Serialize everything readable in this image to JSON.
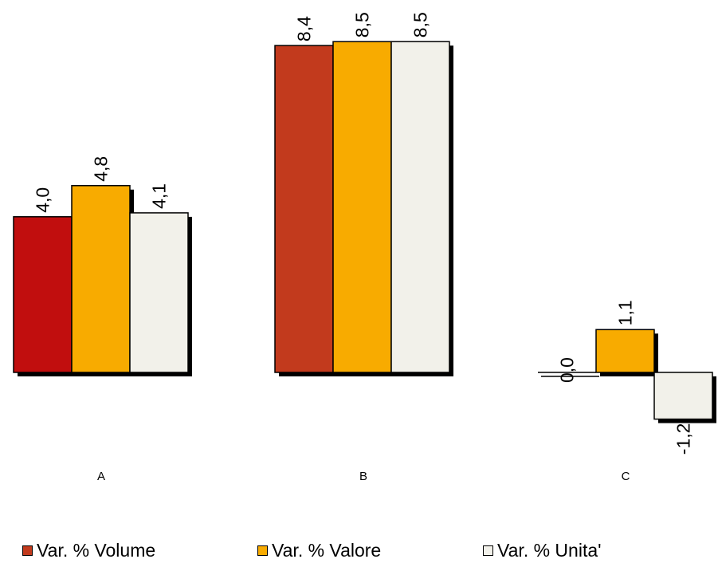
{
  "chart_data": {
    "type": "bar",
    "categories": [
      "A",
      "B",
      "C"
    ],
    "series": [
      {
        "name": "Var. % Volume",
        "values": [
          4.0,
          8.4,
          0.0
        ],
        "labels": [
          "4,0",
          "8,4",
          "0,0"
        ],
        "colors": [
          "#c10e0e",
          "#c23a1d",
          "#c23a1d"
        ]
      },
      {
        "name": "Var. % Valore",
        "values": [
          4.8,
          8.5,
          1.1
        ],
        "labels": [
          "4,8",
          "8,5",
          "1,1"
        ],
        "colors": [
          "#f8ab00",
          "#f8ab00",
          "#f8ab00"
        ]
      },
      {
        "name": "Var. % Unita'",
        "values": [
          4.1,
          8.5,
          -1.2
        ],
        "labels": [
          "4,1",
          "8,5",
          "-1,2"
        ],
        "colors": [
          "#f2f1ea",
          "#f2f1ea",
          "#f2f1ea"
        ]
      }
    ],
    "legend": {
      "position": "bottom",
      "colors": [
        "#c23a1d",
        "#f8ab00",
        "#f2f1ea"
      ]
    },
    "grid": false,
    "shadow_color": "#000000"
  }
}
